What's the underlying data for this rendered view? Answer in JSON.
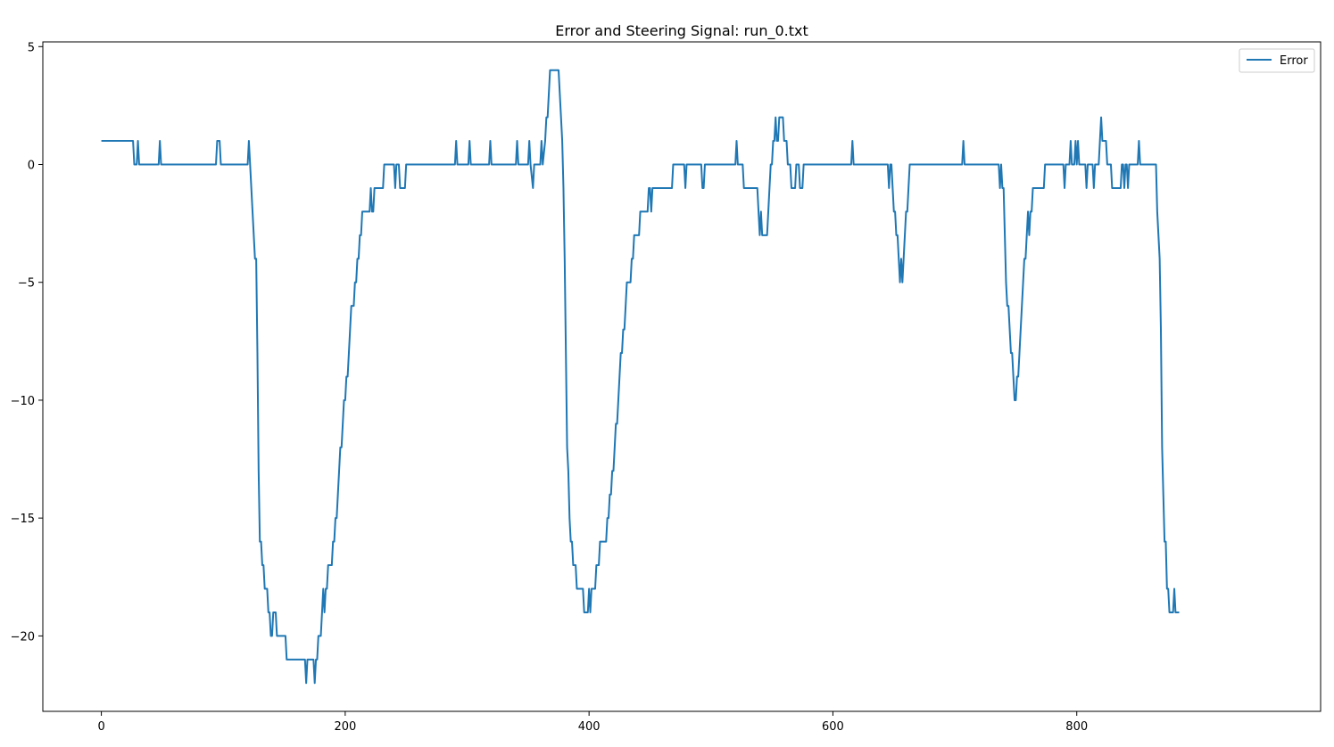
{
  "chart_data": {
    "type": "line",
    "title": "Error and Steering Signal: run_0.txt",
    "xlabel": "",
    "ylabel": "",
    "xlim": [
      -48,
      1000
    ],
    "ylim": [
      -23.2,
      5.2
    ],
    "xticks": [
      0,
      200,
      400,
      600,
      800
    ],
    "yticks": [
      5,
      0,
      -5,
      -10,
      -15,
      -20
    ],
    "xtick_labels": [
      "0",
      "200",
      "400",
      "600",
      "800"
    ],
    "ytick_labels": [
      "5",
      "0",
      "−5",
      "−10",
      "−15",
      "−20"
    ],
    "grid": false,
    "legend": {
      "position": "top-right",
      "entries": [
        "Error"
      ]
    },
    "series": [
      {
        "name": "Error",
        "color": "#1f77b4",
        "points": [
          [
            0,
            1
          ],
          [
            26,
            1
          ],
          [
            27,
            0
          ],
          [
            29,
            0
          ],
          [
            30,
            1
          ],
          [
            31,
            0
          ],
          [
            47,
            0
          ],
          [
            48,
            1
          ],
          [
            49,
            0
          ],
          [
            94,
            0
          ],
          [
            95,
            1
          ],
          [
            97,
            1
          ],
          [
            98,
            0
          ],
          [
            120,
            0
          ],
          [
            121,
            1
          ],
          [
            122,
            0
          ],
          [
            124,
            -2
          ],
          [
            126,
            -4
          ],
          [
            127,
            -4
          ],
          [
            128,
            -8
          ],
          [
            129,
            -13
          ],
          [
            130,
            -16
          ],
          [
            131,
            -16
          ],
          [
            132,
            -17
          ],
          [
            133,
            -17
          ],
          [
            134,
            -18
          ],
          [
            136,
            -18
          ],
          [
            137,
            -19
          ],
          [
            138,
            -19
          ],
          [
            139,
            -20
          ],
          [
            140,
            -20
          ],
          [
            141,
            -19
          ],
          [
            143,
            -19
          ],
          [
            144,
            -20
          ],
          [
            151,
            -20
          ],
          [
            152,
            -21
          ],
          [
            167,
            -21
          ],
          [
            168,
            -22
          ],
          [
            169,
            -21
          ],
          [
            174,
            -21
          ],
          [
            175,
            -22
          ],
          [
            176,
            -21
          ],
          [
            177,
            -21
          ],
          [
            178,
            -20
          ],
          [
            180,
            -20
          ],
          [
            181,
            -19
          ],
          [
            182,
            -18
          ],
          [
            183,
            -19
          ],
          [
            184,
            -18
          ],
          [
            185,
            -18
          ],
          [
            186,
            -17
          ],
          [
            189,
            -17
          ],
          [
            190,
            -16
          ],
          [
            191,
            -16
          ],
          [
            192,
            -15
          ],
          [
            193,
            -15
          ],
          [
            194,
            -14
          ],
          [
            195,
            -13
          ],
          [
            196,
            -12
          ],
          [
            197,
            -12
          ],
          [
            198,
            -11
          ],
          [
            199,
            -10
          ],
          [
            200,
            -10
          ],
          [
            201,
            -9
          ],
          [
            202,
            -9
          ],
          [
            203,
            -8
          ],
          [
            204,
            -7
          ],
          [
            205,
            -6
          ],
          [
            207,
            -6
          ],
          [
            208,
            -5
          ],
          [
            209,
            -5
          ],
          [
            210,
            -4
          ],
          [
            211,
            -4
          ],
          [
            212,
            -3
          ],
          [
            213,
            -3
          ],
          [
            214,
            -2
          ],
          [
            220,
            -2
          ],
          [
            221,
            -1
          ],
          [
            222,
            -2
          ],
          [
            223,
            -2
          ],
          [
            224,
            -1
          ],
          [
            231,
            -1
          ],
          [
            232,
            0
          ],
          [
            240,
            0
          ],
          [
            241,
            -1
          ],
          [
            242,
            0
          ],
          [
            244,
            0
          ],
          [
            245,
            -1
          ],
          [
            249,
            -1
          ],
          [
            250,
            0
          ],
          [
            290,
            0
          ],
          [
            291,
            1
          ],
          [
            292,
            0
          ],
          [
            301,
            0
          ],
          [
            302,
            1
          ],
          [
            303,
            0
          ],
          [
            318,
            0
          ],
          [
            319,
            1
          ],
          [
            320,
            0
          ],
          [
            340,
            0
          ],
          [
            341,
            1
          ],
          [
            342,
            0
          ],
          [
            350,
            0
          ],
          [
            351,
            1
          ],
          [
            352,
            0
          ],
          [
            354,
            -1
          ],
          [
            355,
            0
          ],
          [
            360,
            0
          ],
          [
            361,
            1
          ],
          [
            362,
            0
          ],
          [
            364,
            1
          ],
          [
            365,
            2
          ],
          [
            366,
            2
          ],
          [
            367,
            3
          ],
          [
            368,
            4
          ],
          [
            375,
            4
          ],
          [
            376,
            3
          ],
          [
            377,
            2
          ],
          [
            378,
            1
          ],
          [
            379,
            -1
          ],
          [
            380,
            -4
          ],
          [
            381,
            -8
          ],
          [
            382,
            -12
          ],
          [
            383,
            -13
          ],
          [
            384,
            -15
          ],
          [
            385,
            -16
          ],
          [
            386,
            -16
          ],
          [
            387,
            -17
          ],
          [
            389,
            -17
          ],
          [
            390,
            -18
          ],
          [
            395,
            -18
          ],
          [
            396,
            -19
          ],
          [
            399,
            -19
          ],
          [
            400,
            -18
          ],
          [
            401,
            -19
          ],
          [
            402,
            -18
          ],
          [
            405,
            -18
          ],
          [
            406,
            -17
          ],
          [
            408,
            -17
          ],
          [
            409,
            -16
          ],
          [
            414,
            -16
          ],
          [
            415,
            -15
          ],
          [
            416,
            -15
          ],
          [
            417,
            -14
          ],
          [
            418,
            -14
          ],
          [
            419,
            -13
          ],
          [
            420,
            -13
          ],
          [
            421,
            -12
          ],
          [
            422,
            -11
          ],
          [
            423,
            -11
          ],
          [
            424,
            -10
          ],
          [
            425,
            -9
          ],
          [
            426,
            -8
          ],
          [
            427,
            -8
          ],
          [
            428,
            -7
          ],
          [
            429,
            -7
          ],
          [
            430,
            -6
          ],
          [
            431,
            -5
          ],
          [
            434,
            -5
          ],
          [
            435,
            -4
          ],
          [
            436,
            -4
          ],
          [
            437,
            -3
          ],
          [
            441,
            -3
          ],
          [
            442,
            -2
          ],
          [
            448,
            -2
          ],
          [
            449,
            -1
          ],
          [
            450,
            -1
          ],
          [
            451,
            -2
          ],
          [
            452,
            -1
          ],
          [
            468,
            -1
          ],
          [
            469,
            0
          ],
          [
            478,
            0
          ],
          [
            479,
            -1
          ],
          [
            480,
            0
          ],
          [
            492,
            0
          ],
          [
            493,
            -1
          ],
          [
            494,
            -1
          ],
          [
            495,
            0
          ],
          [
            520,
            0
          ],
          [
            521,
            1
          ],
          [
            522,
            0
          ],
          [
            526,
            0
          ],
          [
            527,
            -1
          ],
          [
            538,
            -1
          ],
          [
            539,
            -2
          ],
          [
            540,
            -3
          ],
          [
            541,
            -2
          ],
          [
            542,
            -3
          ],
          [
            546,
            -3
          ],
          [
            547,
            -2
          ],
          [
            548,
            -1
          ],
          [
            549,
            0
          ],
          [
            550,
            0
          ],
          [
            551,
            1
          ],
          [
            552,
            1
          ],
          [
            553,
            2
          ],
          [
            554,
            1
          ],
          [
            555,
            1
          ],
          [
            556,
            2
          ],
          [
            559,
            2
          ],
          [
            560,
            1
          ],
          [
            562,
            1
          ],
          [
            563,
            0
          ],
          [
            565,
            0
          ],
          [
            566,
            -1
          ],
          [
            569,
            -1
          ],
          [
            570,
            0
          ],
          [
            572,
            0
          ],
          [
            573,
            -1
          ],
          [
            575,
            -1
          ],
          [
            576,
            0
          ],
          [
            615,
            0
          ],
          [
            616,
            1
          ],
          [
            617,
            0
          ],
          [
            645,
            0
          ],
          [
            646,
            -1
          ],
          [
            647,
            0
          ],
          [
            648,
            0
          ],
          [
            649,
            -1
          ],
          [
            650,
            -2
          ],
          [
            651,
            -2
          ],
          [
            652,
            -3
          ],
          [
            653,
            -3
          ],
          [
            654,
            -4
          ],
          [
            655,
            -5
          ],
          [
            656,
            -4
          ],
          [
            657,
            -5
          ],
          [
            658,
            -4
          ],
          [
            659,
            -3
          ],
          [
            660,
            -2
          ],
          [
            661,
            -2
          ],
          [
            662,
            -1
          ],
          [
            663,
            0
          ],
          [
            706,
            0
          ],
          [
            707,
            1
          ],
          [
            708,
            0
          ],
          [
            736,
            0
          ],
          [
            737,
            -1
          ],
          [
            738,
            0
          ],
          [
            739,
            -1
          ],
          [
            740,
            -1
          ],
          [
            741,
            -3
          ],
          [
            742,
            -5
          ],
          [
            743,
            -6
          ],
          [
            744,
            -6
          ],
          [
            745,
            -7
          ],
          [
            746,
            -8
          ],
          [
            747,
            -8
          ],
          [
            748,
            -9
          ],
          [
            749,
            -10
          ],
          [
            750,
            -10
          ],
          [
            751,
            -9
          ],
          [
            752,
            -9
          ],
          [
            753,
            -8
          ],
          [
            754,
            -7
          ],
          [
            755,
            -6
          ],
          [
            756,
            -5
          ],
          [
            757,
            -4
          ],
          [
            758,
            -4
          ],
          [
            759,
            -3
          ],
          [
            760,
            -2
          ],
          [
            761,
            -3
          ],
          [
            762,
            -2
          ],
          [
            763,
            -2
          ],
          [
            764,
            -1
          ],
          [
            773,
            -1
          ],
          [
            774,
            0
          ],
          [
            789,
            0
          ],
          [
            790,
            -1
          ],
          [
            791,
            0
          ],
          [
            794,
            0
          ],
          [
            795,
            1
          ],
          [
            796,
            0
          ],
          [
            798,
            0
          ],
          [
            799,
            1
          ],
          [
            800,
            0
          ],
          [
            801,
            1
          ],
          [
            802,
            0
          ],
          [
            807,
            0
          ],
          [
            808,
            -1
          ],
          [
            809,
            0
          ],
          [
            813,
            0
          ],
          [
            814,
            -1
          ],
          [
            815,
            0
          ],
          [
            818,
            0
          ],
          [
            819,
            1
          ],
          [
            820,
            2
          ],
          [
            821,
            1
          ],
          [
            824,
            1
          ],
          [
            825,
            0
          ],
          [
            828,
            0
          ],
          [
            829,
            -1
          ],
          [
            836,
            -1
          ],
          [
            837,
            0
          ],
          [
            838,
            0
          ],
          [
            839,
            -1
          ],
          [
            840,
            0
          ],
          [
            841,
            0
          ],
          [
            842,
            -1
          ],
          [
            843,
            0
          ],
          [
            850,
            0
          ],
          [
            851,
            1
          ],
          [
            852,
            0
          ],
          [
            865,
            0
          ],
          [
            866,
            -2
          ],
          [
            867,
            -3
          ],
          [
            868,
            -4
          ],
          [
            869,
            -7
          ],
          [
            870,
            -12
          ],
          [
            871,
            -14
          ],
          [
            872,
            -16
          ],
          [
            873,
            -16
          ],
          [
            874,
            -18
          ],
          [
            875,
            -18
          ],
          [
            876,
            -19
          ],
          [
            879,
            -19
          ],
          [
            880,
            -18
          ],
          [
            881,
            -19
          ],
          [
            884,
            -19
          ]
        ]
      }
    ]
  }
}
